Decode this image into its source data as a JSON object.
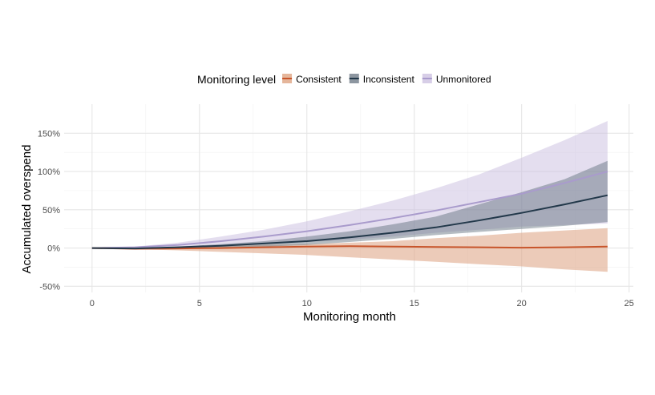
{
  "chart_data": {
    "type": "line",
    "title": "",
    "xlabel": "Monitoring month",
    "ylabel": "Accumulated overspend",
    "xlim": [
      -1.3,
      25.2
    ],
    "ylim": [
      -58,
      188
    ],
    "x_ticks": [
      0,
      5,
      10,
      15,
      20,
      25
    ],
    "y_ticks": [
      -50,
      0,
      50,
      100,
      150
    ],
    "y_tick_labels": [
      "-50%",
      "0%",
      "50%",
      "100%",
      "150%"
    ],
    "grid": true,
    "legend": {
      "title": "Monitoring level",
      "position": "top",
      "entries": [
        "Consistent",
        "Inconsistent",
        "Unmonitored"
      ]
    },
    "x": [
      0,
      2,
      4,
      6,
      8,
      10,
      12,
      14,
      16,
      18,
      20,
      22,
      24
    ],
    "series": [
      {
        "name": "Unmonitored",
        "color": "#a99bcc",
        "band_color": "#c9bedf",
        "band_opacity": 0.5,
        "values": [
          0,
          1,
          4,
          9,
          15,
          22,
          30,
          39,
          49,
          60,
          71,
          85,
          100
        ],
        "lower": [
          0,
          0,
          1,
          3,
          5,
          8,
          11,
          15,
          20,
          24,
          28,
          30,
          32
        ],
        "upper": [
          0,
          2,
          7,
          15,
          24,
          35,
          48,
          62,
          78,
          96,
          118,
          141,
          166
        ]
      },
      {
        "name": "Consistent",
        "color": "#c8552b",
        "band_color": "#e0a98a",
        "band_opacity": 0.6,
        "values": [
          0,
          -1,
          -0.5,
          0,
          1,
          2,
          2.5,
          2,
          1.5,
          1,
          0.5,
          1,
          2
        ],
        "lower": [
          0,
          -1.5,
          -3,
          -5,
          -7,
          -9,
          -12,
          -15,
          -18,
          -21,
          -24,
          -28,
          -31
        ],
        "upper": [
          0,
          -0.5,
          1,
          2.5,
          4,
          5,
          7,
          9,
          13,
          16,
          20,
          23,
          26
        ]
      },
      {
        "name": "Inconsistent",
        "color": "#22384a",
        "band_color": "#5c6a78",
        "band_opacity": 0.45,
        "values": [
          0,
          -0.5,
          1,
          3,
          6,
          9,
          14,
          20,
          27,
          36,
          46,
          57,
          69
        ],
        "lower": [
          0,
          -1,
          0,
          1,
          2,
          4,
          8,
          12,
          17,
          21,
          25,
          29,
          34
        ],
        "upper": [
          0,
          0,
          2,
          5,
          9,
          15,
          22,
          31,
          41,
          57,
          73,
          90,
          114
        ]
      }
    ]
  }
}
